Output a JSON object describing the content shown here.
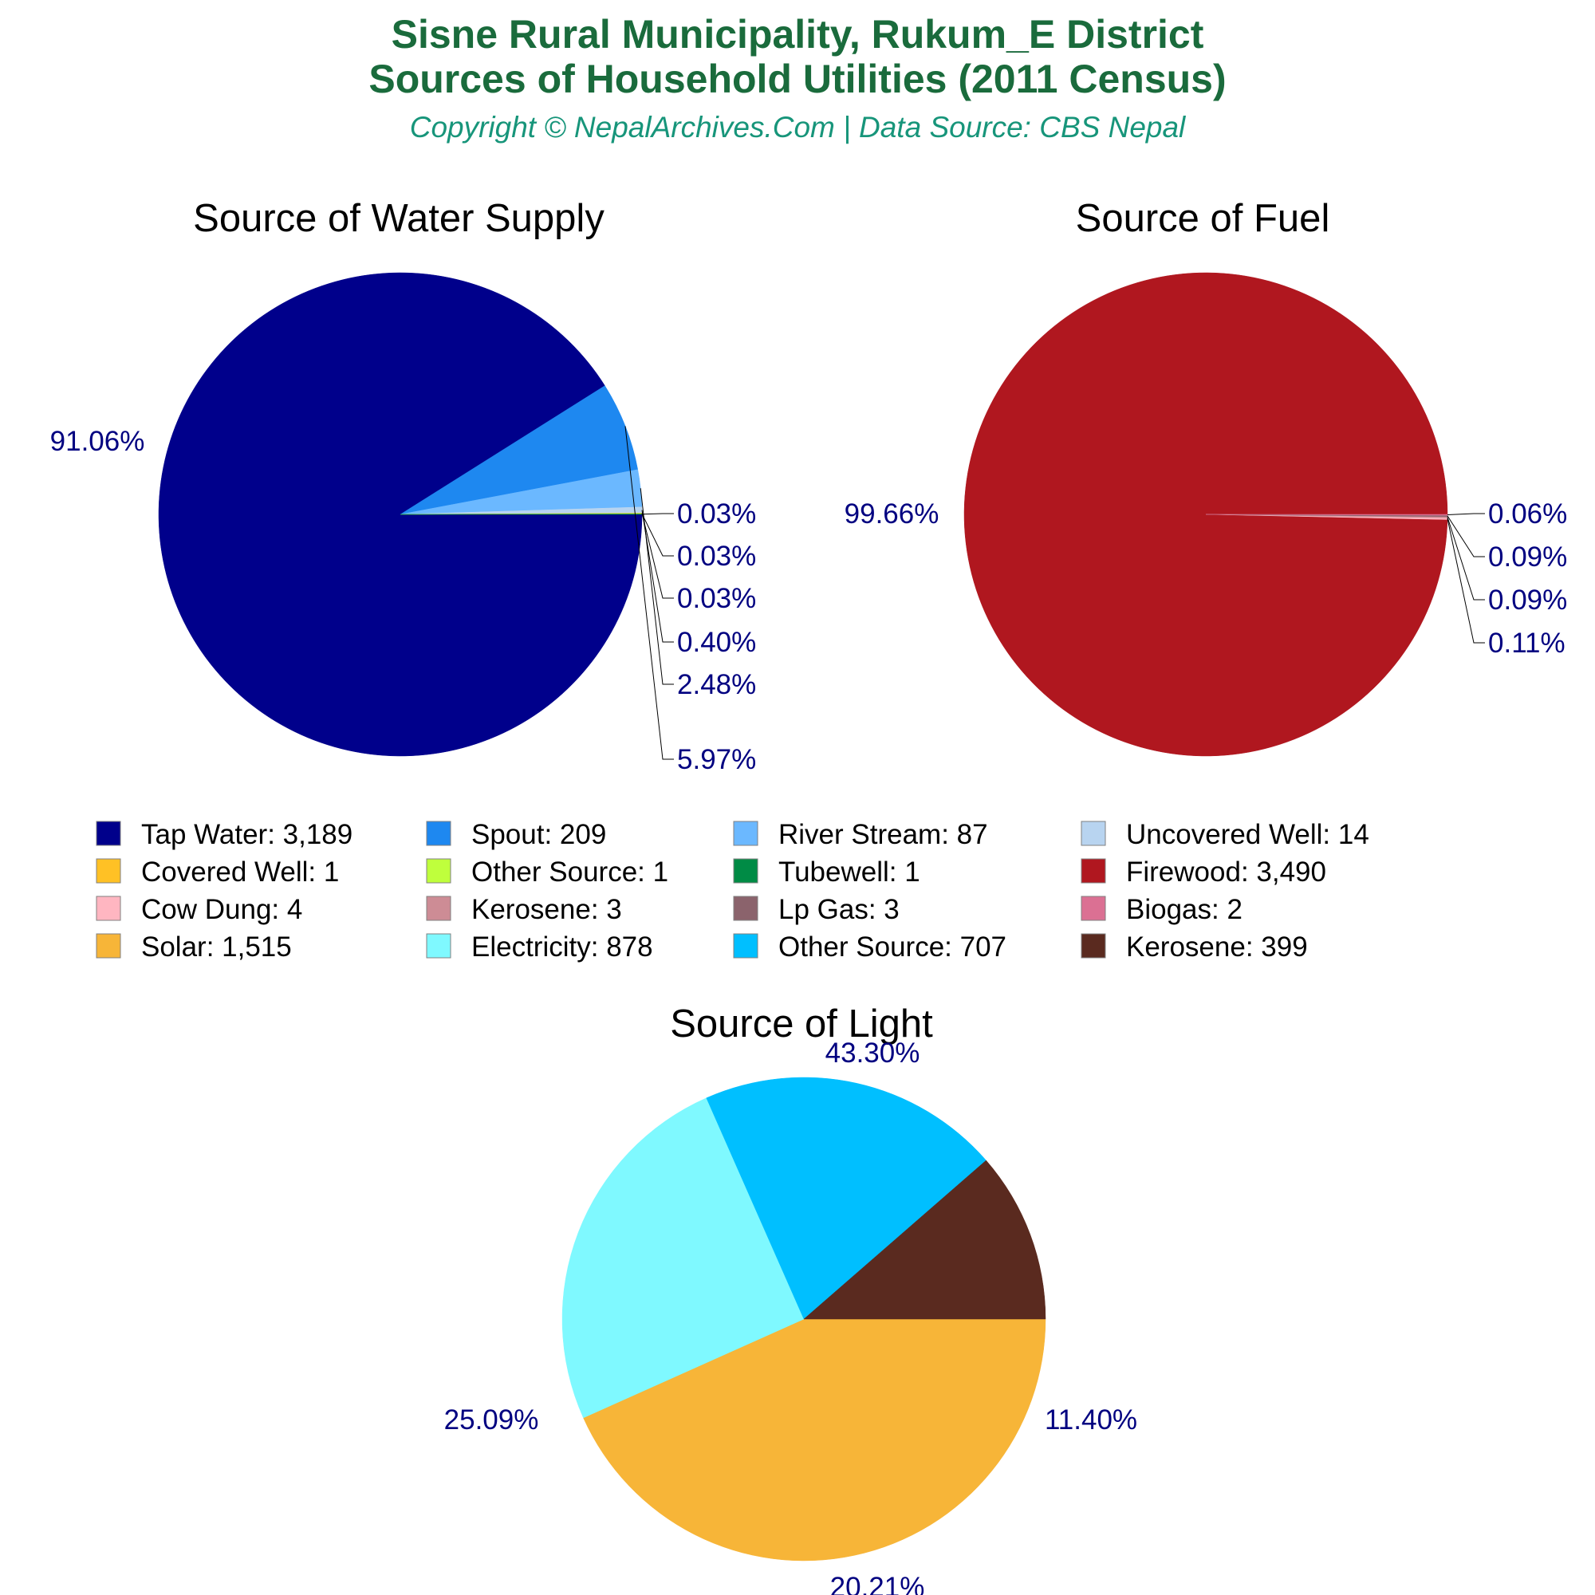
{
  "header": {
    "title_line1": "Sisne Rural Municipality, Rukum_E District",
    "title_line2": "Sources of Household Utilities (2011 Census)",
    "subtitle": "Copyright © NepalArchives.Com | Data Source: CBS Nepal"
  },
  "legend": [
    {
      "label": "Tap Water: 3,189",
      "color": "#00008b"
    },
    {
      "label": "Spout: 209",
      "color": "#1e88f0"
    },
    {
      "label": "River Stream: 87",
      "color": "#6bb8ff"
    },
    {
      "label": "Uncovered Well: 14",
      "color": "#b8d4f0"
    },
    {
      "label": "Covered Well: 1",
      "color": "#ffc125"
    },
    {
      "label": "Other Source: 1",
      "color": "#bfff3c"
    },
    {
      "label": "Tubewell: 1",
      "color": "#008b45"
    },
    {
      "label": "Firewood: 3,490",
      "color": "#b0171f"
    },
    {
      "label": "Cow Dung: 4",
      "color": "#ffb6c1"
    },
    {
      "label": "Kerosene: 3",
      "color": "#cd8c95"
    },
    {
      "label": "Lp Gas: 3",
      "color": "#8b636c"
    },
    {
      "label": "Biogas: 2",
      "color": "#db7093"
    },
    {
      "label": "Solar: 1,515",
      "color": "#f7b538"
    },
    {
      "label": "Electricity: 878",
      "color": "#7ff9ff"
    },
    {
      "label": "Other Source: 707",
      "color": "#00bfff"
    },
    {
      "label": "Kerosene: 399",
      "color": "#5a2a1f"
    }
  ],
  "chart_data": [
    {
      "type": "pie",
      "title": "Source of Water Supply",
      "slices": [
        {
          "name": "Tap Water",
          "value": 3189,
          "label": "91.06%",
          "color": "#00008b"
        },
        {
          "name": "Spout",
          "value": 209,
          "label": "5.97%",
          "color": "#1e88f0"
        },
        {
          "name": "River Stream",
          "value": 87,
          "label": "2.48%",
          "color": "#6bb8ff"
        },
        {
          "name": "Uncovered Well",
          "value": 14,
          "label": "0.40%",
          "color": "#b8d4f0"
        },
        {
          "name": "Covered Well",
          "value": 1,
          "label": "0.03%",
          "color": "#ffc125"
        },
        {
          "name": "Other Source",
          "value": 1,
          "label": "0.03%",
          "color": "#bfff3c"
        },
        {
          "name": "Tubewell",
          "value": 1,
          "label": "0.03%",
          "color": "#008b45"
        }
      ]
    },
    {
      "type": "pie",
      "title": "Source of Fuel",
      "slices": [
        {
          "name": "Firewood",
          "value": 3490,
          "label": "99.66%",
          "color": "#b0171f"
        },
        {
          "name": "Cow Dung",
          "value": 4,
          "label": "0.11%",
          "color": "#ffb6c1"
        },
        {
          "name": "Kerosene",
          "value": 3,
          "label": "0.09%",
          "color": "#cd8c95"
        },
        {
          "name": "Lp Gas",
          "value": 3,
          "label": "0.09%",
          "color": "#8b636c"
        },
        {
          "name": "Biogas",
          "value": 2,
          "label": "0.06%",
          "color": "#db7093"
        }
      ]
    },
    {
      "type": "pie",
      "title": "Source of Light",
      "slices": [
        {
          "name": "Solar",
          "value": 1515,
          "label": "43.30%",
          "color": "#f7b538"
        },
        {
          "name": "Electricity",
          "value": 878,
          "label": "25.09%",
          "color": "#7ff9ff"
        },
        {
          "name": "Other Source",
          "value": 707,
          "label": "20.21%",
          "color": "#00bfff"
        },
        {
          "name": "Kerosene",
          "value": 399,
          "label": "11.40%",
          "color": "#5a2a1f"
        }
      ]
    }
  ]
}
